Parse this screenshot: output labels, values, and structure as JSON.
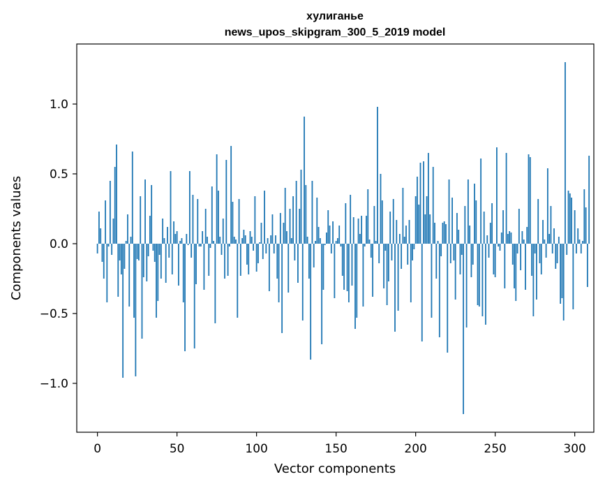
{
  "chart_data": {
    "type": "bar",
    "title": "хулиганье",
    "subtitle": "news_upos_skipgram_300_5_2019 model",
    "xlabel": "Vector components",
    "ylabel": "Components values",
    "xlim": [
      -13,
      312
    ],
    "ylim": [
      -1.35,
      1.43
    ],
    "x_ticks": [
      0,
      50,
      100,
      150,
      200,
      250,
      300
    ],
    "y_ticks": [
      1.0,
      0.5,
      0.0,
      -0.5,
      -1.0
    ],
    "x_tick_labels": [
      "0",
      "50",
      "100",
      "150",
      "200",
      "250",
      "300"
    ],
    "y_tick_labels": [
      "1.0",
      "0.5",
      "0.0",
      "−0.5",
      "−1.0"
    ],
    "grid": false,
    "bar_color": "#1f77b4",
    "values": [
      -0.07,
      0.23,
      0.11,
      -0.13,
      -0.25,
      0.31,
      -0.42,
      -0.02,
      0.45,
      -0.08,
      0.18,
      0.55,
      0.71,
      -0.38,
      -0.12,
      -0.22,
      -0.96,
      -0.18,
      0.02,
      0.21,
      -0.45,
      0.05,
      0.66,
      -0.53,
      -0.95,
      -0.11,
      -0.12,
      0.34,
      -0.68,
      -0.24,
      0.46,
      -0.27,
      -0.09,
      0.2,
      0.42,
      -0.05,
      -0.13,
      -0.53,
      -0.41,
      -0.08,
      -0.25,
      0.18,
      0.04,
      -0.28,
      0.12,
      -0.1,
      0.52,
      -0.22,
      0.16,
      0.07,
      0.09,
      -0.3,
      0.02,
      0.04,
      -0.42,
      -0.77,
      0.07,
      -0.01,
      0.52,
      -0.1,
      0.35,
      -0.75,
      -0.29,
      0.32,
      -0.02,
      -0.02,
      0.09,
      -0.33,
      0.25,
      0.05,
      -0.23,
      -0.03,
      0.41,
      0.02,
      -0.57,
      0.64,
      0.38,
      0.05,
      -0.08,
      0.18,
      -0.25,
      0.6,
      -0.23,
      -0.02,
      0.7,
      0.3,
      0.05,
      0.03,
      -0.53,
      0.32,
      -0.23,
      0.04,
      0.1,
      0.06,
      -0.15,
      -0.22,
      0.09,
      0.05,
      -0.05,
      0.34,
      -0.2,
      -0.14,
      0.01,
      0.15,
      -0.11,
      0.38,
      -0.07,
      0.04,
      -0.34,
      0.06,
      0.21,
      -0.07,
      0.06,
      -0.25,
      -0.42,
      0.22,
      -0.64,
      0.15,
      0.4,
      0.09,
      -0.35,
      0.25,
      0.04,
      0.34,
      -0.12,
      0.45,
      -0.28,
      0.25,
      0.53,
      -0.55,
      0.91,
      0.42,
      0.05,
      -0.25,
      -0.83,
      0.45,
      -0.17,
      0.02,
      0.33,
      0.12,
      0.04,
      -0.72,
      -0.33,
      -0.01,
      0.08,
      0.24,
      0.13,
      -0.07,
      0.16,
      -0.39,
      0.02,
      0.04,
      0.13,
      -0.02,
      -0.23,
      -0.33,
      0.29,
      -0.34,
      -0.42,
      0.35,
      -0.3,
      0.19,
      -0.61,
      -0.53,
      0.18,
      0.07,
      0.2,
      -0.45,
      -0.02,
      0.2,
      0.39,
      0.03,
      -0.1,
      -0.38,
      0.27,
      0.02,
      0.98,
      -0.14,
      0.5,
      0.31,
      -0.32,
      -0.05,
      -0.44,
      -0.27,
      0.23,
      -0.12,
      0.32,
      -0.63,
      0.17,
      -0.48,
      0.07,
      -0.18,
      0.4,
      0.05,
      0.13,
      -0.15,
      0.17,
      -0.42,
      -0.12,
      -0.04,
      0.34,
      0.48,
      0.28,
      0.58,
      -0.7,
      0.59,
      0.21,
      0.34,
      0.65,
      0.21,
      -0.53,
      0.55,
      0.15,
      -0.25,
      0.02,
      -0.67,
      -0.09,
      0.15,
      0.16,
      0.14,
      -0.78,
      0.46,
      -0.14,
      0.33,
      -0.12,
      -0.4,
      0.22,
      0.1,
      -0.22,
      -0.08,
      -1.22,
      0.27,
      -0.6,
      0.46,
      0.13,
      -0.24,
      -0.15,
      0.43,
      0.31,
      -0.44,
      -0.45,
      0.61,
      -0.52,
      0.23,
      -0.58,
      0.06,
      -0.1,
      0.15,
      0.29,
      -0.22,
      -0.24,
      0.69,
      -0.02,
      -0.05,
      0.08,
      0.24,
      -0.32,
      0.65,
      0.07,
      0.09,
      0.08,
      -0.15,
      -0.32,
      -0.41,
      -0.07,
      0.25,
      -0.19,
      0.09,
      0.03,
      -0.33,
      0.12,
      0.64,
      0.62,
      -0.23,
      -0.52,
      -0.07,
      -0.4,
      0.32,
      -0.14,
      -0.22,
      0.17,
      0.03,
      -0.1,
      0.54,
      0.07,
      0.27,
      -0.07,
      0.11,
      -0.18,
      -0.14,
      0.05,
      -0.43,
      -0.39,
      -0.55,
      1.3,
      -0.08,
      0.38,
      0.36,
      0.33,
      -0.47,
      0.24,
      -0.07,
      0.11,
      0.03,
      -0.07,
      0.02,
      0.39,
      0.26,
      -0.31,
      0.63
    ]
  }
}
